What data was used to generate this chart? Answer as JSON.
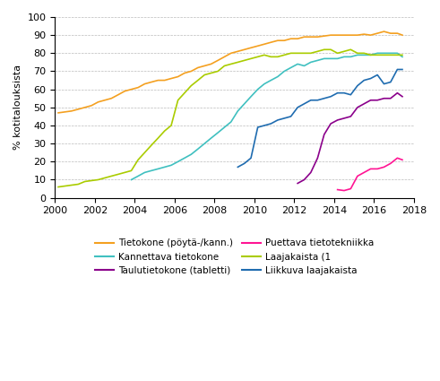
{
  "ylabel": "% kotitalouksista",
  "xlim": [
    2000,
    2018
  ],
  "ylim": [
    0,
    100
  ],
  "xticks": [
    2000,
    2002,
    2004,
    2006,
    2008,
    2010,
    2012,
    2014,
    2016,
    2018
  ],
  "yticks": [
    0,
    10,
    20,
    30,
    40,
    50,
    60,
    70,
    80,
    90,
    100
  ],
  "series": {
    "Tietokone (pöytä-/kann.)": {
      "color": "#F4A020",
      "x": [
        2000.17,
        2000.5,
        2000.83,
        2001.17,
        2001.5,
        2001.83,
        2002.17,
        2002.5,
        2002.83,
        2003.17,
        2003.5,
        2003.83,
        2004.17,
        2004.5,
        2004.83,
        2005.17,
        2005.5,
        2005.83,
        2006.17,
        2006.5,
        2006.83,
        2007.17,
        2007.5,
        2007.83,
        2008.17,
        2008.5,
        2008.83,
        2009.17,
        2009.5,
        2009.83,
        2010.17,
        2010.5,
        2010.83,
        2011.17,
        2011.5,
        2011.83,
        2012.17,
        2012.5,
        2012.83,
        2013.17,
        2013.5,
        2013.83,
        2014.17,
        2014.5,
        2014.83,
        2015.17,
        2015.5,
        2015.83,
        2016.17,
        2016.5,
        2016.83,
        2017.17,
        2017.42
      ],
      "y": [
        47,
        47.5,
        48,
        49,
        50,
        51,
        53,
        54,
        55,
        57,
        59,
        60,
        61,
        63,
        64,
        65,
        65,
        66,
        67,
        69,
        70,
        72,
        73,
        74,
        76,
        78,
        80,
        81,
        82,
        83,
        84,
        85,
        86,
        87,
        87,
        88,
        88,
        89,
        89,
        89,
        89.5,
        90,
        90,
        90,
        90,
        90,
        90.5,
        90,
        91,
        92,
        91,
        91,
        90
      ]
    },
    "Kannettava tietokone": {
      "color": "#40C0C0",
      "x": [
        2003.83,
        2004.17,
        2004.5,
        2004.83,
        2005.17,
        2005.5,
        2005.83,
        2006.17,
        2006.5,
        2006.83,
        2007.17,
        2007.5,
        2007.83,
        2008.17,
        2008.5,
        2008.83,
        2009.17,
        2009.5,
        2009.83,
        2010.17,
        2010.5,
        2010.83,
        2011.17,
        2011.5,
        2011.83,
        2012.17,
        2012.5,
        2012.83,
        2013.17,
        2013.5,
        2013.83,
        2014.17,
        2014.5,
        2014.83,
        2015.17,
        2015.5,
        2015.83,
        2016.17,
        2016.5,
        2016.83,
        2017.17,
        2017.42
      ],
      "y": [
        10,
        12,
        14,
        15,
        16,
        17,
        18,
        20,
        22,
        24,
        27,
        30,
        33,
        36,
        39,
        42,
        48,
        52,
        56,
        60,
        63,
        65,
        67,
        70,
        72,
        74,
        73,
        75,
        76,
        77,
        77,
        77,
        78,
        78,
        79,
        79,
        79,
        80,
        80,
        80,
        80,
        78
      ]
    },
    "Taulutietokone (tabletti)": {
      "color": "#8B008B",
      "x": [
        2012.17,
        2012.5,
        2012.83,
        2013.17,
        2013.5,
        2013.83,
        2014.17,
        2014.5,
        2014.83,
        2015.17,
        2015.5,
        2015.83,
        2016.17,
        2016.5,
        2016.83,
        2017.17,
        2017.42
      ],
      "y": [
        8,
        10,
        14,
        22,
        35,
        41,
        43,
        44,
        45,
        50,
        52,
        54,
        54,
        55,
        55,
        58,
        56
      ]
    },
    "Puettava tietotekniikka": {
      "color": "#FF1493",
      "x": [
        2014.17,
        2014.5,
        2014.83,
        2015.17,
        2015.5,
        2015.83,
        2016.17,
        2016.5,
        2016.83,
        2017.17,
        2017.42
      ],
      "y": [
        4.5,
        4,
        5,
        12,
        14,
        16,
        16,
        17,
        19,
        22,
        21
      ]
    },
    "Laajakaista (1": {
      "color": "#AACC00",
      "x": [
        2000.17,
        2000.5,
        2000.83,
        2001.17,
        2001.5,
        2001.83,
        2002.17,
        2002.5,
        2002.83,
        2003.17,
        2003.5,
        2003.83,
        2004.17,
        2004.5,
        2004.83,
        2005.17,
        2005.5,
        2005.83,
        2006.17,
        2006.5,
        2006.83,
        2007.17,
        2007.5,
        2007.83,
        2008.17,
        2008.5,
        2008.83,
        2009.17,
        2009.5,
        2009.83,
        2010.17,
        2010.5,
        2010.83,
        2011.17,
        2011.5,
        2011.83,
        2012.17,
        2012.5,
        2012.83,
        2013.17,
        2013.5,
        2013.83,
        2014.17,
        2014.5,
        2014.83,
        2015.17,
        2015.5,
        2015.83,
        2016.17,
        2016.5,
        2016.83,
        2017.17,
        2017.42
      ],
      "y": [
        6,
        6.5,
        7,
        7.5,
        9,
        9.5,
        10,
        11,
        12,
        13,
        14,
        15,
        21,
        25,
        29,
        33,
        37,
        40,
        54,
        58,
        62,
        65,
        68,
        69,
        70,
        73,
        74,
        75,
        76,
        77,
        78,
        79,
        78,
        78,
        79,
        80,
        80,
        80,
        80,
        81,
        82,
        82,
        80,
        81,
        82,
        80,
        80,
        79,
        79,
        79,
        79,
        79,
        79
      ]
    },
    "Liikkuva laajakaista": {
      "color": "#1F6CB0",
      "x": [
        2009.17,
        2009.5,
        2009.83,
        2010.17,
        2010.5,
        2010.83,
        2011.17,
        2011.5,
        2011.83,
        2012.17,
        2012.5,
        2012.83,
        2013.17,
        2013.5,
        2013.83,
        2014.17,
        2014.5,
        2014.83,
        2015.17,
        2015.5,
        2015.83,
        2016.17,
        2016.5,
        2016.83,
        2017.17,
        2017.42
      ],
      "y": [
        17,
        19,
        22,
        39,
        40,
        41,
        43,
        44,
        45,
        50,
        52,
        54,
        54,
        55,
        56,
        58,
        58,
        57,
        62,
        65,
        66,
        68,
        63,
        64,
        71,
        71
      ]
    }
  },
  "legend_order": [
    "Tietokone (pöytä-/kann.)",
    "Kannettava tietokone",
    "Taulutietokone (tabletti)",
    "Puettava tietotekniikka",
    "Laajakaista (1",
    "Liikkuva laajakaista"
  ]
}
